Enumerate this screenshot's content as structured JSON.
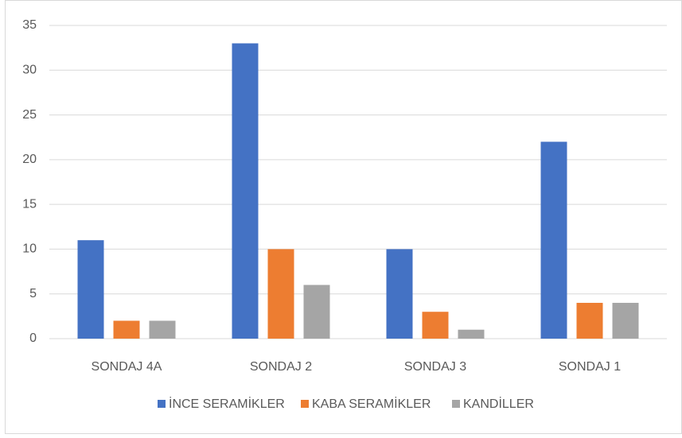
{
  "chart_data": {
    "type": "bar",
    "categories": [
      "SONDAJ 4A",
      "SONDAJ 2",
      "SONDAJ 3",
      "SONDAJ 1"
    ],
    "series": [
      {
        "name": "İNCE SERAMİKLER",
        "color": "#4472c4",
        "values": [
          11,
          33,
          10,
          22
        ]
      },
      {
        "name": "KABA SERAMİKLER",
        "color": "#ed7d31",
        "values": [
          2,
          10,
          3,
          4
        ]
      },
      {
        "name": "KANDİLLER",
        "color": "#a5a5a5",
        "values": [
          2,
          6,
          1,
          4
        ]
      }
    ],
    "ylim": [
      0,
      35
    ],
    "yticks": [
      0,
      5,
      10,
      15,
      20,
      25,
      30,
      35
    ],
    "grid": true,
    "legend": "bottom"
  }
}
